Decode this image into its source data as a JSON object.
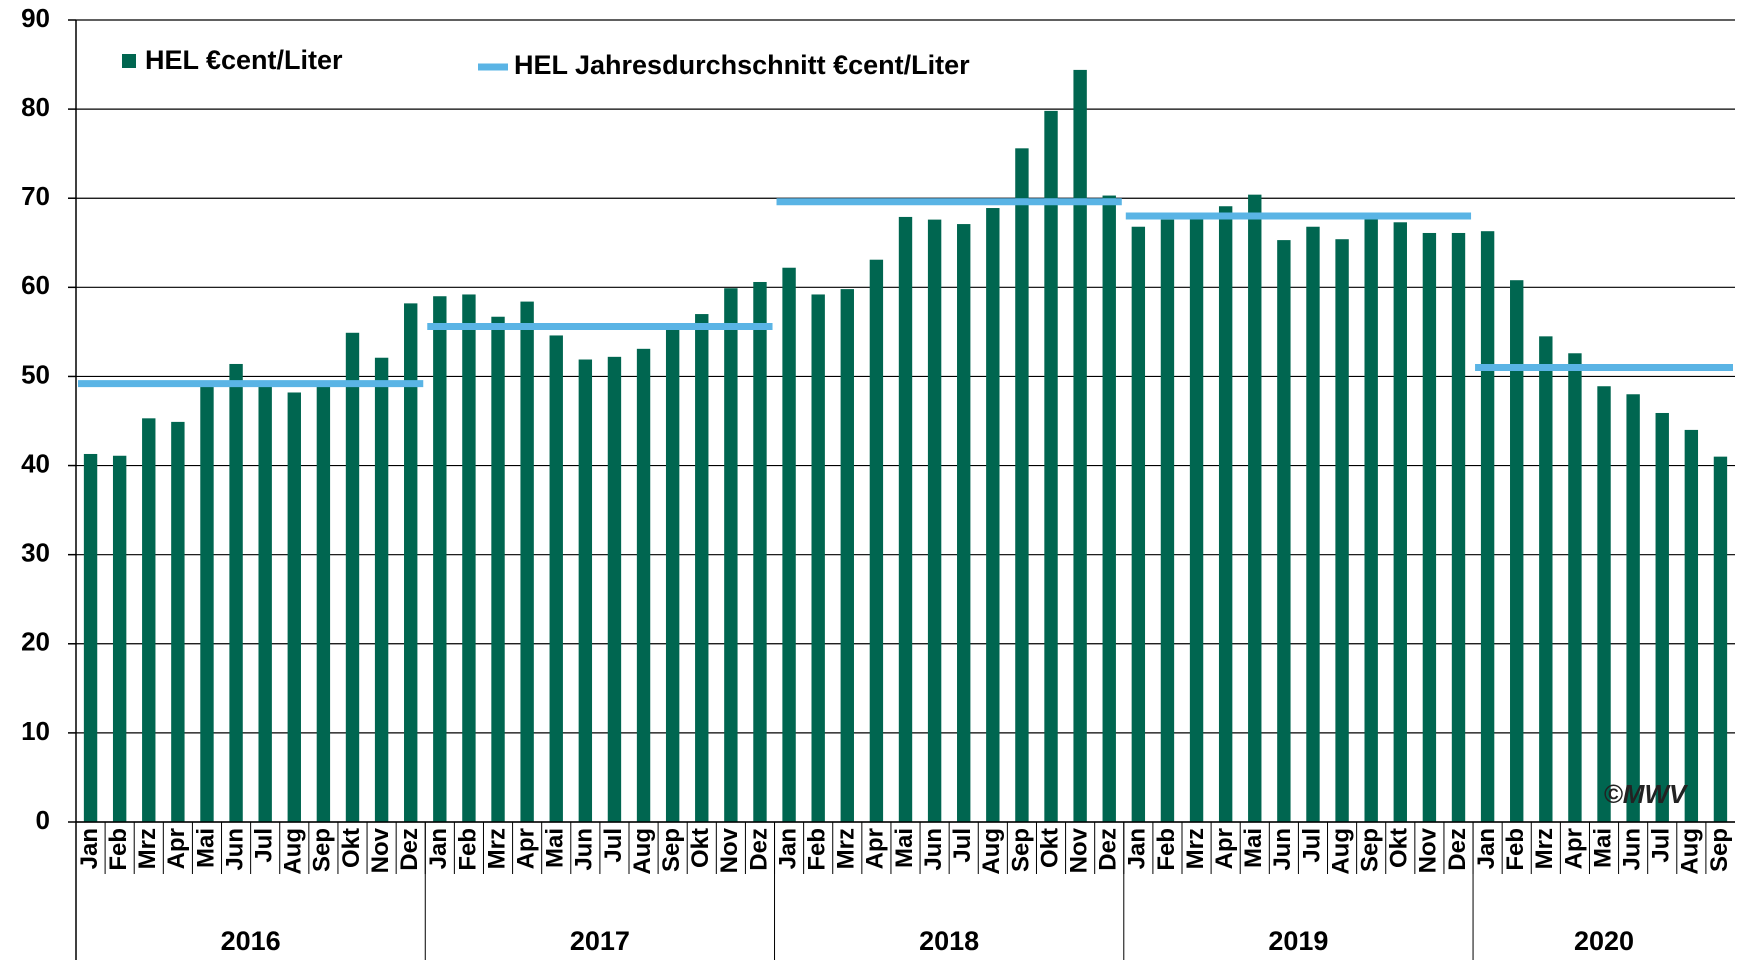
{
  "chart_data": {
    "type": "bar",
    "categories": [
      "Jan",
      "Feb",
      "Mrz",
      "Apr",
      "Mai",
      "Jun",
      "Jul",
      "Aug",
      "Sep",
      "Okt",
      "Nov",
      "Dez",
      "Jan",
      "Feb",
      "Mrz",
      "Apr",
      "Mai",
      "Jun",
      "Jul",
      "Aug",
      "Sep",
      "Okt",
      "Nov",
      "Dez",
      "Jan",
      "Feb",
      "Mrz",
      "Apr",
      "Mai",
      "Jun",
      "Jul",
      "Aug",
      "Sep",
      "Okt",
      "Nov",
      "Dez",
      "Jan",
      "Feb",
      "Mrz",
      "Apr",
      "Mai",
      "Jun",
      "Jul",
      "Aug",
      "Sep",
      "Okt",
      "Nov",
      "Dez",
      "Jan",
      "Feb",
      "Mrz",
      "Apr",
      "Mai",
      "Jun",
      "Jul",
      "Aug",
      "Sep"
    ],
    "years": [
      "2016",
      "2017",
      "2018",
      "2019",
      "2020"
    ],
    "series": [
      {
        "name": "HEL €cent/Liter",
        "color": "#006650",
        "values": [
          41.3,
          41.1,
          45.3,
          44.9,
          49.0,
          51.4,
          49.0,
          48.2,
          49.0,
          54.9,
          52.1,
          58.2,
          59.0,
          59.2,
          56.7,
          58.4,
          54.6,
          51.9,
          52.2,
          53.1,
          55.5,
          57.0,
          59.9,
          60.6,
          62.2,
          59.2,
          59.8,
          63.1,
          67.9,
          67.6,
          67.1,
          68.9,
          75.6,
          79.8,
          84.4,
          70.3,
          66.8,
          67.6,
          67.7,
          69.1,
          70.4,
          65.3,
          66.8,
          65.4,
          67.7,
          67.3,
          66.1,
          66.1,
          66.3,
          60.8,
          54.5,
          52.6,
          48.9,
          48.0,
          45.9,
          44.0,
          41.0
        ]
      }
    ],
    "annual_average": {
      "name": "HEL Jahresdurchschnitt €cent/Liter",
      "color": "#5ab4e5",
      "values": [
        49.2,
        55.6,
        69.6,
        68.0,
        51.0
      ]
    },
    "ylim": [
      0,
      90
    ],
    "yticks": [
      0,
      10,
      20,
      30,
      40,
      50,
      60,
      70,
      80,
      90
    ],
    "grid": true,
    "watermark": "©MWV"
  }
}
